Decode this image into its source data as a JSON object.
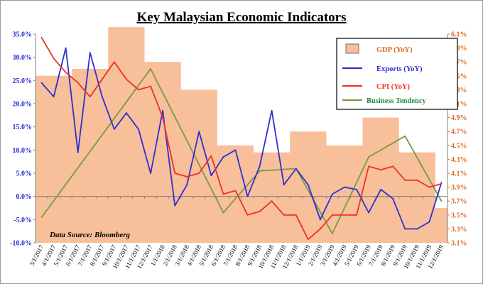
{
  "chart_data": {
    "type": "line",
    "title": "Key Malaysian Economic Indicators",
    "source_note": "Data Source: Bloomberg",
    "categories": [
      "3/1/2017",
      "4/1/2017",
      "5/1/2017",
      "6/1/2017",
      "7/1/2017",
      "8/1/2017",
      "9/1/2017",
      "10/1/2017",
      "11/1/2017",
      "12/1/2017",
      "1/1/2018",
      "2/1/2018",
      "3/1/2018",
      "4/1/2018",
      "5/1/2018",
      "6/1/2018",
      "7/1/2018",
      "8/1/2018",
      "9/1/2018",
      "10/1/2018",
      "11/1/2018",
      "12/1/2018",
      "1/1/2019",
      "2/1/2019",
      "3/1/2019",
      "4/1/2019",
      "5/1/2019",
      "6/1/2019",
      "7/1/2019",
      "8/1/2019",
      "9/1/2019",
      "10/1/2019",
      "11/1/2019",
      "12/1/2019"
    ],
    "y_left": {
      "range": [
        -10,
        35
      ],
      "ticks": [
        "-10.0%",
        "-5.0%",
        "0.0%",
        "5.0%",
        "10.0%",
        "15.0%",
        "20.0%",
        "25.0%",
        "30.0%",
        "35.0%"
      ],
      "color": "#2f2fd0"
    },
    "y_right": {
      "range": [
        3.1,
        6.1
      ],
      "ticks": [
        "3.1%",
        "3.3%",
        "3.5%",
        "3.7%",
        "3.9%",
        "4.1%",
        "4.3%",
        "4.5%",
        "4.7%",
        "4.9%",
        "5.1%",
        "5.3%",
        "5.5%",
        "5.7%",
        "5.9%",
        "6.1%"
      ],
      "color": "#e06a1a"
    },
    "legend": {
      "placement": "top-right"
    },
    "grid": false,
    "series": [
      {
        "name": "GDP (YoY)",
        "kind": "area",
        "axis": "right",
        "color": "#f7bf9a",
        "values": [
          5.5,
          5.5,
          5.5,
          5.6,
          5.6,
          5.6,
          6.2,
          6.2,
          6.2,
          5.7,
          5.7,
          5.7,
          5.3,
          5.3,
          5.3,
          4.5,
          4.5,
          4.5,
          4.4,
          4.4,
          4.4,
          4.7,
          4.7,
          4.7,
          4.5,
          4.5,
          4.5,
          4.9,
          4.9,
          4.9,
          4.4,
          4.4,
          4.4,
          3.6
        ]
      },
      {
        "name": "Exports (YoY)",
        "kind": "line",
        "axis": "left",
        "color": "#2f2fd0",
        "values": [
          24.5,
          21.5,
          32.0,
          9.5,
          31.0,
          21.5,
          14.5,
          18.0,
          14.5,
          5.0,
          18.5,
          -2.0,
          2.5,
          14.0,
          4.5,
          8.5,
          10.0,
          0.0,
          6.5,
          18.5,
          2.5,
          6.0,
          2.5,
          -5.0,
          0.5,
          2.0,
          1.5,
          -3.5,
          1.5,
          -0.5,
          -7.0,
          -7.0,
          -5.5,
          3.0
        ]
      },
      {
        "name": "CPI (YoY)",
        "kind": "line",
        "axis": "right",
        "color": "#ee3224",
        "values": [
          6.05,
          5.75,
          5.55,
          5.4,
          5.2,
          5.45,
          5.7,
          5.45,
          5.3,
          5.35,
          4.9,
          4.1,
          4.05,
          4.1,
          4.35,
          3.8,
          3.85,
          3.5,
          3.55,
          3.7,
          3.5,
          3.5,
          3.15,
          3.3,
          3.5,
          3.5,
          3.5,
          4.2,
          4.15,
          4.2,
          4.0,
          4.0,
          3.9,
          3.95
        ]
      },
      {
        "name": "Business Tendency",
        "kind": "line",
        "axis": "left",
        "color": "#7a9a3a",
        "values": [
          -4.5,
          null,
          null,
          null,
          null,
          null,
          null,
          null,
          null,
          27.5,
          null,
          null,
          null,
          null,
          null,
          -3.5,
          null,
          null,
          5.5,
          null,
          null,
          6.0,
          null,
          null,
          -8.0,
          null,
          null,
          8.5,
          null,
          null,
          13.0,
          null,
          null,
          -1.0
        ]
      }
    ]
  }
}
